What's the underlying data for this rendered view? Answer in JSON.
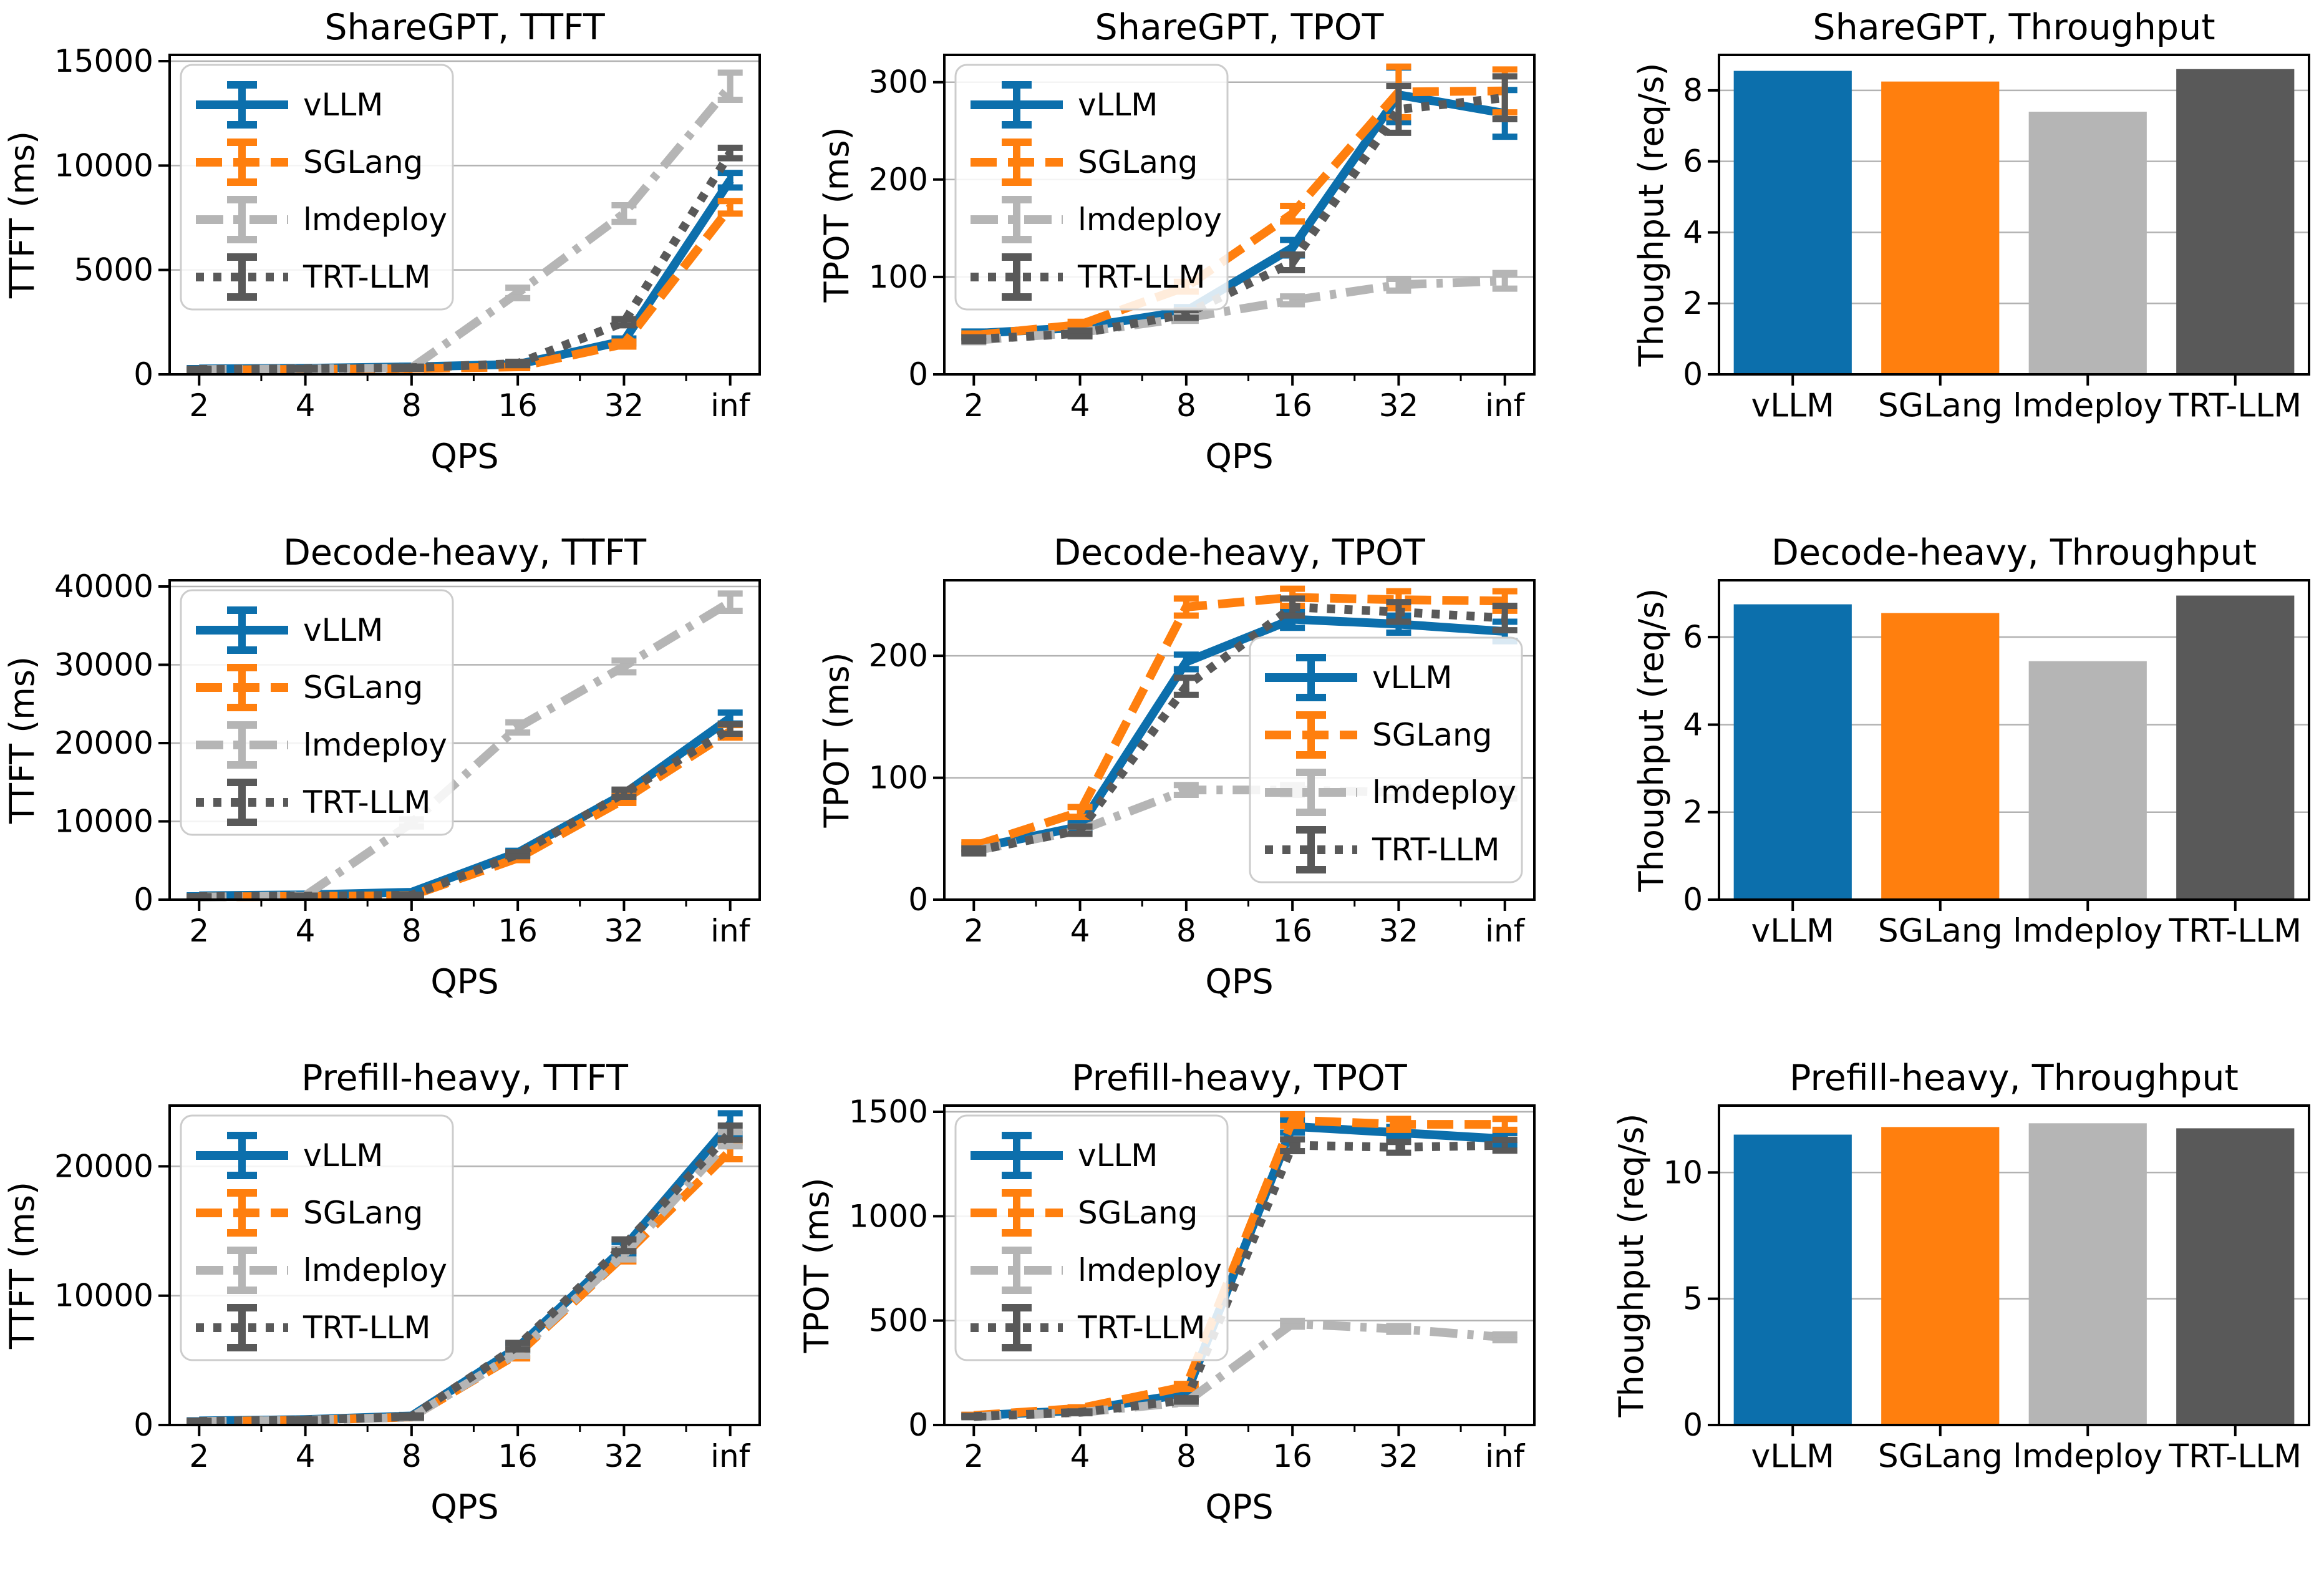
{
  "figure": {
    "description": "Benchmark comparison of LLM serving engines across workloads",
    "engines": [
      "vLLM",
      "SGLang",
      "lmdeploy",
      "TRT-LLM"
    ]
  },
  "styles": {
    "vLLM": {
      "color": "#0c6fac",
      "dash": "solid"
    },
    "SGLang": {
      "color": "#ff7f0e",
      "dash": "dashed"
    },
    "lmdeploy": {
      "color": "#b5b5b5",
      "dash": "dashdot"
    },
    "TRT-LLM": {
      "color": "#595959",
      "dash": "dotted"
    },
    "grid_color": "#b2b2b2",
    "spine_color": "#000000",
    "legend_border": "#cccccc"
  },
  "chart_data": [
    {
      "id": "sharegpt-ttft",
      "type": "line",
      "title": "ShareGPT, TTFT",
      "xlabel": "QPS",
      "ylabel": "TTFT (ms)",
      "categories": [
        "2",
        "4",
        "8",
        "16",
        "32",
        "inf"
      ],
      "yticks": [
        0,
        5000,
        10000,
        15000
      ],
      "ylim": [
        0,
        15300
      ],
      "legend": {
        "show": true,
        "position": "upper-left"
      },
      "series": [
        {
          "name": "vLLM",
          "values": [
            260,
            290,
            360,
            480,
            1600,
            9300
          ],
          "err": [
            40,
            40,
            50,
            80,
            120,
            350
          ]
        },
        {
          "name": "SGLang",
          "values": [
            210,
            240,
            270,
            360,
            1450,
            8000
          ],
          "err": [
            30,
            30,
            40,
            60,
            120,
            300
          ]
        },
        {
          "name": "lmdeploy",
          "values": [
            230,
            260,
            310,
            3900,
            7700,
            13800
          ],
          "err": [
            30,
            40,
            50,
            250,
            400,
            650
          ]
        },
        {
          "name": "TRT-LLM",
          "values": [
            240,
            270,
            320,
            520,
            2500,
            10600
          ],
          "err": [
            30,
            40,
            50,
            80,
            150,
            250
          ]
        }
      ]
    },
    {
      "id": "sharegpt-tpot",
      "type": "line",
      "title": "ShareGPT, TPOT",
      "xlabel": "QPS",
      "ylabel": "TPOT (ms)",
      "categories": [
        "2",
        "4",
        "8",
        "16",
        "32",
        "inf"
      ],
      "yticks": [
        0,
        100,
        200,
        300
      ],
      "ylim": [
        0,
        328
      ],
      "legend": {
        "show": true,
        "position": "upper-left"
      },
      "series": [
        {
          "name": "vLLM",
          "values": [
            42,
            48,
            65,
            130,
            287,
            268
          ],
          "err": [
            2,
            2,
            4,
            8,
            28,
            24
          ]
        },
        {
          "name": "SGLang",
          "values": [
            40,
            51,
            90,
            165,
            290,
            291
          ],
          "err": [
            2,
            3,
            5,
            8,
            26,
            22
          ]
        },
        {
          "name": "lmdeploy",
          "values": [
            35,
            43,
            58,
            76,
            92,
            96
          ],
          "err": [
            2,
            2,
            3,
            4,
            6,
            8
          ]
        },
        {
          "name": "TRT-LLM",
          "values": [
            36,
            42,
            62,
            115,
            272,
            284
          ],
          "err": [
            2,
            3,
            4,
            8,
            24,
            22
          ]
        }
      ]
    },
    {
      "id": "sharegpt-throughput",
      "type": "bar",
      "title": "ShareGPT, Throughput",
      "xlabel": "",
      "ylabel": "Thoughput (req/s)",
      "categories": [
        "vLLM",
        "SGLang",
        "lmdeploy",
        "TRT-LLM"
      ],
      "values": [
        8.55,
        8.25,
        7.4,
        8.6
      ],
      "yticks": [
        0,
        2,
        4,
        6,
        8
      ],
      "ylim": [
        0,
        9.0
      ]
    },
    {
      "id": "decode-heavy-ttft",
      "type": "line",
      "title": "Decode-heavy, TTFT",
      "xlabel": "QPS",
      "ylabel": "TTFT (ms)",
      "categories": [
        "2",
        "4",
        "8",
        "16",
        "32",
        "inf"
      ],
      "yticks": [
        0,
        10000,
        20000,
        30000,
        40000
      ],
      "ylim": [
        0,
        40800
      ],
      "legend": {
        "show": true,
        "position": "upper-left"
      },
      "series": [
        {
          "name": "vLLM",
          "values": [
            500,
            620,
            950,
            6000,
            13500,
            23200
          ],
          "err": [
            60,
            60,
            100,
            250,
            400,
            700
          ]
        },
        {
          "name": "SGLang",
          "values": [
            350,
            420,
            520,
            5300,
            12800,
            21500
          ],
          "err": [
            50,
            60,
            80,
            250,
            450,
            800
          ]
        },
        {
          "name": "lmdeploy",
          "values": [
            320,
            520,
            9800,
            22000,
            29800,
            38000
          ],
          "err": [
            50,
            80,
            450,
            650,
            750,
            1100
          ]
        },
        {
          "name": "TRT-LLM",
          "values": [
            400,
            460,
            560,
            5800,
            13600,
            21800
          ],
          "err": [
            50,
            60,
            80,
            250,
            450,
            600
          ]
        }
      ]
    },
    {
      "id": "decode-heavy-tpot",
      "type": "line",
      "title": "Decode-heavy, TPOT",
      "xlabel": "QPS",
      "ylabel": "TPOT (ms)",
      "categories": [
        "2",
        "4",
        "8",
        "16",
        "32",
        "inf"
      ],
      "yticks": [
        0,
        100,
        200
      ],
      "ylim": [
        0,
        262
      ],
      "legend": {
        "show": true,
        "position": "lower-right"
      },
      "series": [
        {
          "name": "vLLM",
          "values": [
            42,
            60,
            195,
            230,
            226,
            220
          ],
          "err": [
            3,
            3,
            6,
            7,
            7,
            8
          ]
        },
        {
          "name": "SGLang",
          "values": [
            44,
            72,
            240,
            248,
            246,
            245
          ],
          "err": [
            3,
            4,
            7,
            7,
            7,
            8
          ]
        },
        {
          "name": "lmdeploy",
          "values": [
            40,
            57,
            90,
            90,
            88,
            87
          ],
          "err": [
            2,
            3,
            4,
            4,
            4,
            4
          ]
        },
        {
          "name": "TRT-LLM",
          "values": [
            40,
            57,
            175,
            240,
            236,
            231
          ],
          "err": [
            2,
            3,
            7,
            7,
            8,
            10
          ]
        }
      ]
    },
    {
      "id": "decode-heavy-throughput",
      "type": "bar",
      "title": "Decode-heavy, Throughput",
      "xlabel": "",
      "ylabel": "Thoughput (req/s)",
      "categories": [
        "vLLM",
        "SGLang",
        "lmdeploy",
        "TRT-LLM"
      ],
      "values": [
        6.75,
        6.55,
        5.45,
        6.95
      ],
      "yticks": [
        0,
        2,
        4,
        6
      ],
      "ylim": [
        0,
        7.3
      ]
    },
    {
      "id": "prefill-heavy-ttft",
      "type": "line",
      "title": "Prefill-heavy, TTFT",
      "xlabel": "QPS",
      "ylabel": "TTFT (ms)",
      "categories": [
        "2",
        "4",
        "8",
        "16",
        "32",
        "inf"
      ],
      "yticks": [
        0,
        10000,
        20000
      ],
      "ylim": [
        0,
        24700
      ],
      "legend": {
        "show": true,
        "position": "upper-left"
      },
      "series": [
        {
          "name": "vLLM",
          "values": [
            320,
            420,
            700,
            6000,
            13700,
            23300
          ],
          "err": [
            40,
            50,
            80,
            250,
            450,
            800
          ]
        },
        {
          "name": "SGLang",
          "values": [
            270,
            370,
            620,
            5500,
            13100,
            21200
          ],
          "err": [
            40,
            50,
            80,
            350,
            450,
            650
          ]
        },
        {
          "name": "lmdeploy",
          "values": [
            270,
            370,
            600,
            5600,
            13200,
            22100
          ],
          "err": [
            40,
            50,
            80,
            250,
            400,
            550
          ]
        },
        {
          "name": "TRT-LLM",
          "values": [
            290,
            390,
            660,
            6100,
            13900,
            22600
          ],
          "err": [
            40,
            50,
            80,
            250,
            450,
            550
          ]
        }
      ]
    },
    {
      "id": "prefill-heavy-tpot",
      "type": "line",
      "title": "Prefill-heavy, TPOT",
      "xlabel": "QPS",
      "ylabel": "TPOT (ms)",
      "categories": [
        "2",
        "4",
        "8",
        "16",
        "32",
        "inf"
      ],
      "yticks": [
        0,
        500,
        1000,
        1500
      ],
      "ylim": [
        0,
        1530
      ],
      "legend": {
        "show": true,
        "position": "upper-left"
      },
      "series": [
        {
          "name": "vLLM",
          "values": [
            45,
            70,
            150,
            1430,
            1400,
            1370
          ],
          "err": [
            3,
            4,
            10,
            30,
            28,
            28
          ]
        },
        {
          "name": "SGLang",
          "values": [
            46,
            80,
            185,
            1460,
            1440,
            1440
          ],
          "err": [
            3,
            5,
            12,
            28,
            26,
            26
          ]
        },
        {
          "name": "lmdeploy",
          "values": [
            40,
            60,
            110,
            485,
            460,
            420
          ],
          "err": [
            3,
            4,
            8,
            14,
            14,
            14
          ]
        },
        {
          "name": "TRT-LLM",
          "values": [
            41,
            61,
            120,
            1340,
            1330,
            1340
          ],
          "err": [
            3,
            4,
            8,
            28,
            26,
            26
          ]
        }
      ]
    },
    {
      "id": "prefill-heavy-throughput",
      "type": "bar",
      "title": "Prefill-heavy, Throughput",
      "xlabel": "",
      "ylabel": "Thoughput (req/s)",
      "categories": [
        "vLLM",
        "SGLang",
        "lmdeploy",
        "TRT-LLM"
      ],
      "values": [
        11.5,
        11.8,
        11.95,
        11.75
      ],
      "yticks": [
        0,
        5,
        10
      ],
      "ylim": [
        0,
        12.65
      ]
    }
  ]
}
